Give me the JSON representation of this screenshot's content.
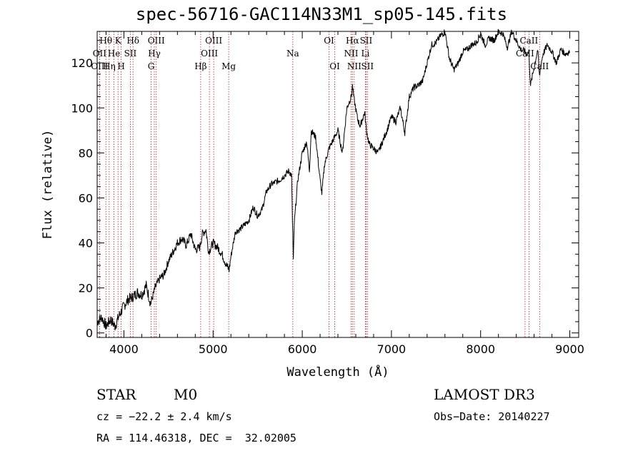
{
  "title": "spec-56716-GAC114N33M1_sp05-145.fits",
  "colors": {
    "axis": "#000000",
    "spectrum": "#000000",
    "line_marker": "#b22222"
  },
  "chart_data": {
    "type": "line",
    "title": "spec-56716-GAC114N33M1_sp05-145.fits",
    "xlabel": "Wavelength (Å)",
    "ylabel": "Flux (relative)",
    "xlim": [
      3700,
      9100
    ],
    "ylim": [
      -2,
      134
    ],
    "xticks": [
      4000,
      5000,
      6000,
      7000,
      8000,
      9000
    ],
    "yticks": [
      0,
      20,
      40,
      60,
      80,
      100,
      120
    ],
    "grid": false,
    "series": [
      {
        "name": "spectrum",
        "x": [
          3700,
          3750,
          3800,
          3850,
          3900,
          3950,
          4000,
          4050,
          4100,
          4150,
          4200,
          4250,
          4300,
          4350,
          4400,
          4450,
          4500,
          4550,
          4600,
          4650,
          4700,
          4750,
          4800,
          4850,
          4880,
          4920,
          4950,
          5000,
          5050,
          5100,
          5150,
          5180,
          5200,
          5250,
          5300,
          5350,
          5400,
          5450,
          5500,
          5550,
          5600,
          5650,
          5700,
          5750,
          5800,
          5850,
          5880,
          5890,
          5900,
          5910,
          5950,
          6000,
          6050,
          6080,
          6100,
          6150,
          6200,
          6220,
          6250,
          6300,
          6350,
          6400,
          6450,
          6500,
          6550,
          6563,
          6580,
          6620,
          6650,
          6700,
          6720,
          6750,
          6800,
          6850,
          6900,
          6950,
          7000,
          7050,
          7100,
          7150,
          7200,
          7250,
          7300,
          7350,
          7400,
          7450,
          7500,
          7550,
          7600,
          7650,
          7700,
          7750,
          7800,
          7850,
          7900,
          7950,
          8000,
          8050,
          8100,
          8150,
          8200,
          8250,
          8300,
          8350,
          8400,
          8450,
          8500,
          8520,
          8540,
          8560,
          8600,
          8640,
          8660,
          8680,
          8700,
          8750,
          8800,
          8850,
          8900,
          8950,
          9000
        ],
        "y": [
          5,
          7,
          3,
          6,
          3,
          8,
          12,
          15,
          16,
          18,
          17,
          21,
          13,
          20,
          24,
          26,
          32,
          36,
          40,
          42,
          39,
          44,
          37,
          38,
          44,
          46,
          36,
          40,
          38,
          35,
          30,
          28,
          34,
          45,
          46,
          48,
          50,
          56,
          52,
          55,
          63,
          66,
          67,
          68,
          70,
          72,
          70,
          50,
          32,
          48,
          68,
          80,
          85,
          72,
          90,
          87,
          68,
          62,
          75,
          82,
          86,
          90,
          80,
          100,
          105,
          110,
          104,
          95,
          92,
          98,
          90,
          84,
          82,
          80,
          85,
          90,
          96,
          94,
          100,
          89,
          105,
          109,
          110,
          112,
          120,
          128,
          129,
          132,
          134,
          122,
          117,
          120,
          125,
          126,
          128,
          129,
          133,
          128,
          131,
          130,
          134,
          133,
          127,
          134,
          130,
          126,
          125,
          124,
          125,
          110,
          118,
          126,
          114,
          120,
          124,
          128,
          125,
          120,
          126,
          124,
          125
        ]
      }
    ],
    "line_markers": [
      {
        "label": "Hθ",
        "x": 3798,
        "row": 1
      },
      {
        "label": "OII",
        "x": 3727,
        "row": 2
      },
      {
        "label": "OIII",
        "x": 3727,
        "row": 3
      },
      {
        "label": "K",
        "x": 3934,
        "row": 1
      },
      {
        "label": "He",
        "x": 3889,
        "row": 2
      },
      {
        "label": "Hη",
        "x": 3835,
        "row": 3
      },
      {
        "label": "Hδ",
        "x": 4102,
        "row": 1
      },
      {
        "label": "SII",
        "x": 4072,
        "row": 2
      },
      {
        "label": "H",
        "x": 3969,
        "row": 3
      },
      {
        "label": "OIII",
        "x": 4363,
        "row": 1
      },
      {
        "label": "Hγ",
        "x": 4341,
        "row": 2
      },
      {
        "label": "G",
        "x": 4305,
        "row": 3
      },
      {
        "label": "OIII",
        "x": 5007,
        "row": 1
      },
      {
        "label": "OIII",
        "x": 4959,
        "row": 2
      },
      {
        "label": "Hβ",
        "x": 4861,
        "row": 3
      },
      {
        "label": "Mg",
        "x": 5175,
        "row": 3
      },
      {
        "label": "Na",
        "x": 5894,
        "row": 2
      },
      {
        "label": "OI",
        "x": 6300,
        "row": 1
      },
      {
        "label": "OI",
        "x": 6364,
        "row": 3
      },
      {
        "label": "Hα",
        "x": 6563,
        "row": 1
      },
      {
        "label": "SII",
        "x": 6716,
        "row": 1
      },
      {
        "label": "NII",
        "x": 6548,
        "row": 2
      },
      {
        "label": "Li",
        "x": 6708,
        "row": 2
      },
      {
        "label": "NII",
        "x": 6583,
        "row": 3
      },
      {
        "label": "SII",
        "x": 6731,
        "row": 3
      },
      {
        "label": "CaII",
        "x": 8542,
        "row": 1
      },
      {
        "label": "CaII",
        "x": 8498,
        "row": 2
      },
      {
        "label": "CaII",
        "x": 8662,
        "row": 3
      }
    ]
  },
  "info": {
    "object_class": "STAR",
    "subclass": "M0",
    "survey": "LAMOST DR3",
    "cz": "cz = −22.2 ± 2.4 km/s",
    "obs_date": "Obs−Date: 20140227",
    "coords": "RA = 114.46318, DEC =  32.02005"
  }
}
